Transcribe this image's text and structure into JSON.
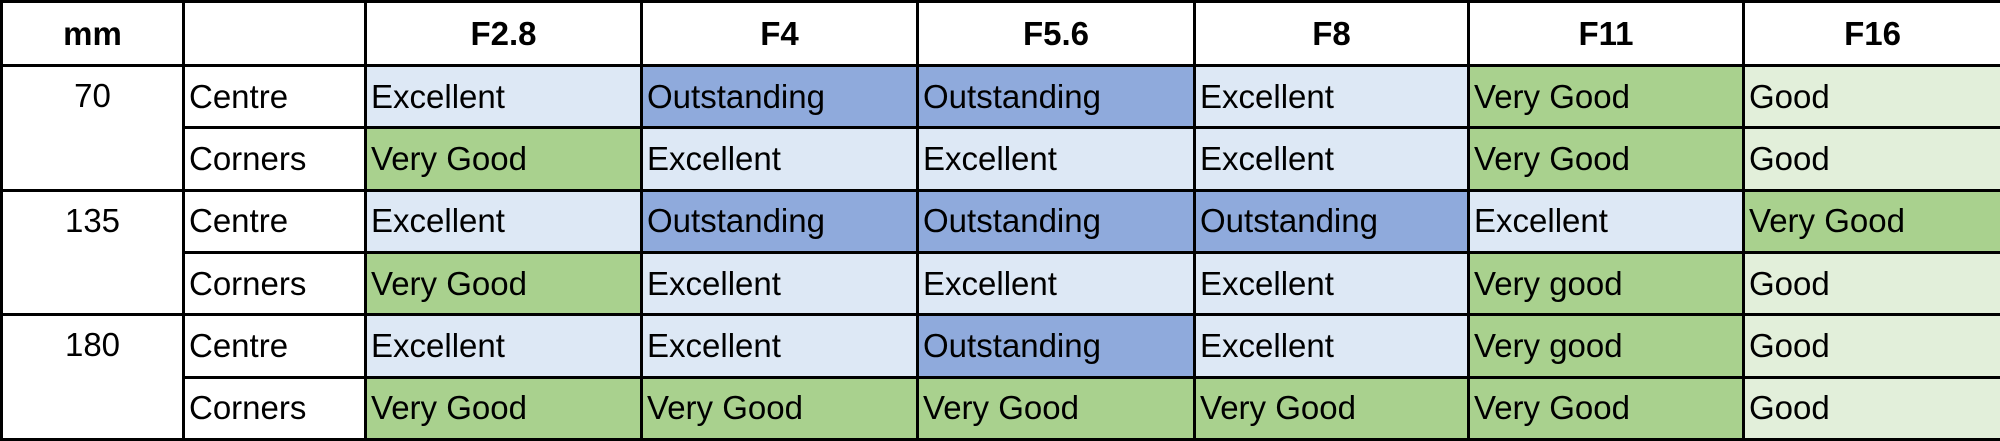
{
  "table": {
    "header": [
      "mm",
      "",
      "F2.8",
      "F4",
      "F5.6",
      "F8",
      "F11",
      "F16"
    ],
    "groups": [
      {
        "mm": "70",
        "rows": [
          {
            "label": "Centre",
            "cells": [
              "Excellent",
              "Outstanding",
              "Outstanding",
              "Excellent",
              "Very Good",
              "Good"
            ],
            "colors": [
              "#dde8f5",
              "#8faadc",
              "#8faadc",
              "#dde8f5",
              "#a9d18e",
              "#e2efda"
            ]
          },
          {
            "label": "Corners",
            "cells": [
              "Very Good",
              "Excellent",
              "Excellent",
              "Excellent",
              "Very Good",
              "Good"
            ],
            "colors": [
              "#a9d18e",
              "#dde8f5",
              "#dde8f5",
              "#dde8f5",
              "#a9d18e",
              "#e2efda"
            ]
          }
        ]
      },
      {
        "mm": "135",
        "rows": [
          {
            "label": "Centre",
            "cells": [
              "Excellent",
              "Outstanding",
              "Outstanding",
              "Outstanding",
              "Excellent",
              "Very Good"
            ],
            "colors": [
              "#dde8f5",
              "#8faadc",
              "#8faadc",
              "#8faadc",
              "#dde8f5",
              "#a9d18e"
            ]
          },
          {
            "label": "Corners",
            "cells": [
              "Very Good",
              "Excellent",
              "Excellent",
              "Excellent",
              "Very good",
              "Good"
            ],
            "colors": [
              "#a9d18e",
              "#dde8f5",
              "#dde8f5",
              "#dde8f5",
              "#a9d18e",
              "#e2efda"
            ]
          }
        ]
      },
      {
        "mm": "180",
        "rows": [
          {
            "label": "Centre",
            "cells": [
              "Excellent",
              "Excellent",
              "Outstanding",
              "Excellent",
              "Very good",
              "Good"
            ],
            "colors": [
              "#dde8f5",
              "#dde8f5",
              "#8faadc",
              "#dde8f5",
              "#a9d18e",
              "#e2efda"
            ]
          },
          {
            "label": "Corners",
            "cells": [
              "Very Good",
              "Very Good",
              "Very Good",
              "Very Good",
              "Very Good",
              "Good"
            ],
            "colors": [
              "#a9d18e",
              "#a9d18e",
              "#a9d18e",
              "#a9d18e",
              "#a9d18e",
              "#e2efda"
            ]
          }
        ]
      }
    ]
  }
}
